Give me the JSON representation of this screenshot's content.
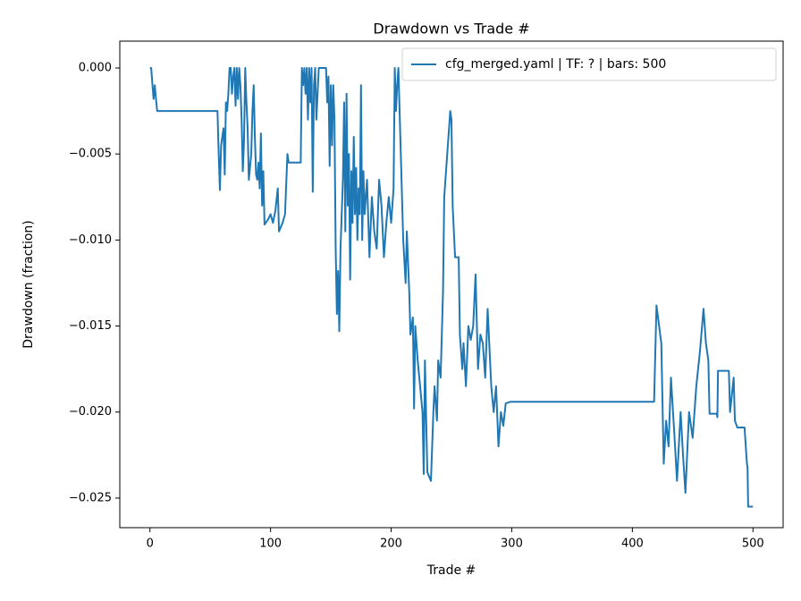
{
  "chart_data": {
    "type": "line",
    "title": "Drawdown vs Trade #",
    "x_label": "Trade #",
    "y_label": "Drawdown (fraction)",
    "legend": "upper right",
    "grid": false,
    "xlim": [
      -25,
      525
    ],
    "xticks": [
      0,
      100,
      200,
      300,
      400,
      500
    ],
    "ylim": [
      -0.02672,
      0.00156
    ],
    "yticks": [
      {
        "value": 0,
        "label": "0.000"
      },
      {
        "value": -0.005,
        "label": "−0.005"
      },
      {
        "value": -0.01,
        "label": "−0.010"
      },
      {
        "value": -0.015,
        "label": "−0.015"
      },
      {
        "value": -0.02,
        "label": "−0.020"
      },
      {
        "value": -0.025,
        "label": "−0.025"
      }
    ],
    "x": [
      0,
      1,
      3,
      4,
      5,
      6,
      56,
      57,
      58,
      59,
      61,
      62,
      63,
      64,
      65,
      66,
      67,
      68,
      69,
      70,
      71,
      72,
      73,
      74,
      75,
      76,
      77,
      78,
      79,
      80,
      81,
      82,
      84,
      85,
      86,
      87,
      88,
      89,
      90,
      91,
      92,
      93,
      94,
      95,
      98,
      100,
      102,
      104,
      106,
      107,
      110,
      112,
      114,
      115,
      125,
      126,
      127,
      128,
      129,
      130,
      131,
      132,
      133,
      134,
      135,
      136,
      137,
      138,
      139,
      140,
      143,
      146,
      147,
      148,
      149,
      150,
      151,
      152,
      153,
      154,
      155,
      156,
      157,
      158,
      160,
      161,
      162,
      163,
      164,
      165,
      166,
      167,
      168,
      169,
      170,
      171,
      172,
      173,
      174,
      175,
      176,
      177,
      178,
      180,
      182,
      184,
      186,
      188,
      190,
      192,
      194,
      196,
      198,
      200,
      202,
      203,
      204,
      205,
      206,
      208,
      210,
      212,
      213,
      215,
      216,
      218,
      219,
      220,
      222,
      224,
      226,
      227,
      228,
      230,
      233,
      235,
      236,
      238,
      239,
      241,
      243,
      244,
      249,
      250,
      251,
      253,
      256,
      257,
      259,
      260,
      262,
      264,
      266,
      268,
      270,
      272,
      274,
      276,
      278,
      280,
      283,
      285,
      287,
      289,
      291,
      293,
      295,
      299,
      418,
      420,
      424,
      426,
      428,
      430,
      432,
      435,
      437,
      440,
      442,
      444,
      447,
      450,
      453,
      456,
      459,
      461,
      463,
      464,
      470,
      470.5,
      471,
      480,
      481,
      484,
      485,
      487,
      493,
      495,
      495.5,
      496,
      500
    ],
    "series": [
      {
        "name": "cfg_merged.yaml | TF: ? | bars: 500",
        "color": "#1f77b4",
        "values": [
          0,
          0,
          -0.0018,
          -0.001,
          -0.0018,
          -0.0025,
          -0.0025,
          -0.005,
          -0.0071,
          -0.0045,
          -0.0035,
          -0.0062,
          -0.002,
          -0.0025,
          -0.0015,
          0,
          0,
          -0.0015,
          -0.0005,
          0,
          -0.0022,
          0,
          -0.0018,
          0,
          -0.001,
          -0.003,
          -0.006,
          -0.0042,
          0,
          -0.002,
          -0.0035,
          -0.0065,
          -0.005,
          -0.0025,
          -0.001,
          -0.004,
          -0.0062,
          -0.0065,
          -0.0055,
          -0.007,
          -0.0038,
          -0.008,
          -0.006,
          -0.0091,
          -0.0088,
          -0.0085,
          -0.009,
          -0.0083,
          -0.007,
          -0.0095,
          -0.009,
          -0.0085,
          -0.005,
          -0.0055,
          -0.0055,
          0,
          -0.001,
          0,
          -0.0015,
          0,
          -0.003,
          0,
          -0.002,
          0,
          -0.0072,
          -0.001,
          0,
          -0.003,
          -0.0015,
          0,
          0,
          0,
          -0.002,
          -0.0005,
          -0.0057,
          -0.001,
          -0.0045,
          -0.001,
          -0.003,
          -0.0105,
          -0.0143,
          -0.0118,
          -0.0153,
          -0.0105,
          -0.0065,
          -0.002,
          -0.0095,
          -0.0015,
          -0.008,
          -0.005,
          -0.0123,
          -0.006,
          -0.009,
          -0.004,
          -0.0085,
          -0.0058,
          -0.01,
          -0.007,
          -0.0085,
          -0.001,
          -0.01,
          -0.006,
          -0.0085,
          -0.0065,
          -0.011,
          -0.0075,
          -0.0095,
          -0.0105,
          -0.0065,
          -0.008,
          -0.011,
          -0.009,
          -0.0075,
          -0.009,
          -0.007,
          0,
          -0.0025,
          -0.001,
          0,
          -0.005,
          -0.01,
          -0.0125,
          -0.0095,
          -0.013,
          -0.0155,
          -0.0145,
          -0.0198,
          -0.015,
          -0.017,
          -0.0185,
          -0.02,
          -0.0236,
          -0.017,
          -0.0235,
          -0.024,
          -0.02,
          -0.0185,
          -0.0205,
          -0.017,
          -0.018,
          -0.013,
          -0.0075,
          -0.0025,
          -0.003,
          -0.008,
          -0.011,
          -0.011,
          -0.0155,
          -0.0175,
          -0.016,
          -0.0185,
          -0.015,
          -0.0158,
          -0.015,
          -0.012,
          -0.0175,
          -0.0155,
          -0.016,
          -0.018,
          -0.014,
          -0.0185,
          -0.02,
          -0.0185,
          -0.022,
          -0.02,
          -0.0208,
          -0.0195,
          -0.0194,
          -0.0194,
          -0.0138,
          -0.016,
          -0.023,
          -0.0205,
          -0.022,
          -0.018,
          -0.0215,
          -0.024,
          -0.02,
          -0.0225,
          -0.0247,
          -0.02,
          -0.0215,
          -0.0185,
          -0.0165,
          -0.014,
          -0.016,
          -0.017,
          -0.0201,
          -0.0201,
          -0.0203,
          -0.0176,
          -0.0176,
          -0.02,
          -0.018,
          -0.0205,
          -0.0209,
          -0.0209,
          -0.023,
          -0.0232,
          -0.0255,
          -0.0255
        ]
      }
    ]
  }
}
